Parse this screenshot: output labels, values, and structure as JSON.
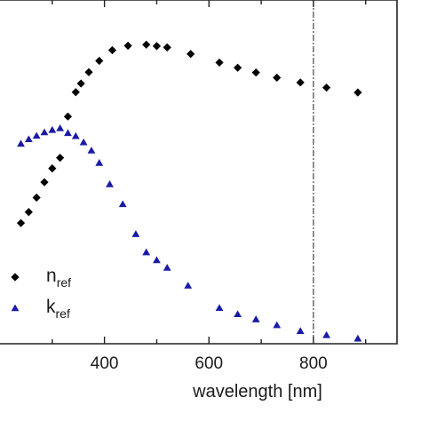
{
  "chart_data": {
    "type": "scatter",
    "title": "",
    "xlabel": "wavelength [nm]",
    "ylabel": "",
    "xlim": [
      200,
      960
    ],
    "ylim": [
      0,
      1
    ],
    "x_ticks": [
      400,
      600,
      800
    ],
    "grid": false,
    "legend_position": "bottom-left",
    "vertical_reference_line": 800,
    "series": [
      {
        "name": "n",
        "name_sub": "ref",
        "marker": "diamond",
        "color": "#000000",
        "x": [
          240,
          255,
          270,
          285,
          300,
          315,
          330,
          345,
          355,
          370,
          390,
          415,
          445,
          480,
          500,
          520,
          565,
          620,
          655,
          690,
          730,
          775,
          825,
          885
        ],
        "y": [
          0.351,
          0.383,
          0.425,
          0.47,
          0.51,
          0.541,
          0.661,
          0.732,
          0.757,
          0.79,
          0.823,
          0.854,
          0.867,
          0.87,
          0.866,
          0.862,
          0.843,
          0.818,
          0.803,
          0.789,
          0.774,
          0.76,
          0.745,
          0.731
        ]
      },
      {
        "name": "k",
        "name_sub": "ref",
        "marker": "triangle",
        "color": "#1a1aa6",
        "x": [
          240,
          255,
          270,
          285,
          300,
          315,
          330,
          345,
          360,
          375,
          390,
          410,
          435,
          460,
          480,
          500,
          520,
          560,
          620,
          655,
          690,
          730,
          775,
          825,
          885
        ],
        "y": [
          0.582,
          0.595,
          0.605,
          0.615,
          0.622,
          0.627,
          0.613,
          0.604,
          0.586,
          0.562,
          0.526,
          0.464,
          0.406,
          0.319,
          0.266,
          0.243,
          0.221,
          0.169,
          0.104,
          0.086,
          0.071,
          0.054,
          0.037,
          0.025,
          0.015
        ]
      }
    ]
  }
}
